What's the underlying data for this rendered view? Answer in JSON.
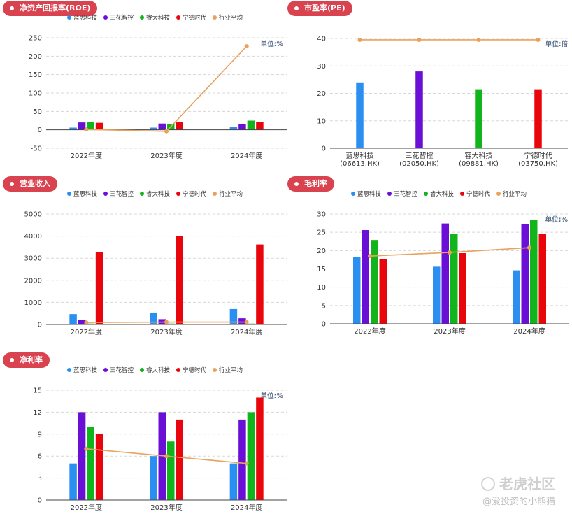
{
  "colors": {
    "s0": "#2b8ff2",
    "s1": "#6a0fd6",
    "s2": "#11b51b",
    "s3": "#e8060c",
    "avg": "#e8a25e"
  },
  "charts": [
    {
      "id": "roe",
      "title": "净资产回报率(ROE)",
      "unit": "单位:%",
      "chart_data": {
        "type": "bar",
        "categories": [
          "2022年度",
          "2023年度",
          "2024年度"
        ],
        "ylim": [
          -50,
          250
        ],
        "yticks": [
          "250",
          "200",
          "150",
          "100",
          "50",
          "0",
          "-50"
        ],
        "series": [
          {
            "name": "蓝思科技",
            "values": [
              6,
              6,
              8
            ]
          },
          {
            "name": "三花智控",
            "values": [
              20,
              17,
              16
            ]
          },
          {
            "name": "睿大科技",
            "values": [
              21,
              16,
              25
            ]
          },
          {
            "name": "宁德时代",
            "values": [
              19,
              22,
              21
            ]
          }
        ],
        "line": {
          "name": "行业平均",
          "values": [
            1,
            -4,
            227
          ]
        }
      }
    },
    {
      "id": "pe",
      "title": "市盈率(PE)",
      "unit": "单位:倍",
      "chart_data": {
        "type": "bar",
        "categories": [
          "蓝思科技",
          "三花智控",
          "容大科技",
          "宁德时代"
        ],
        "category_codes": [
          "(06613.HK)",
          "(02050.HK)",
          "(09881.HK)",
          "(03750.HK)"
        ],
        "ylim": [
          0,
          40
        ],
        "yticks": [
          "40",
          "30",
          "20",
          "10",
          "0"
        ],
        "values": [
          24,
          28,
          21.5,
          21.5
        ],
        "line": {
          "name": "行业平均",
          "values": [
            39.5,
            39.5,
            39.5,
            39.5
          ]
        }
      }
    },
    {
      "id": "revenue",
      "title": "营业收入",
      "unit": "",
      "chart_data": {
        "type": "bar",
        "categories": [
          "2022年度",
          "2023年度",
          "2024年度"
        ],
        "ylim": [
          0,
          5000
        ],
        "yticks": [
          "5000",
          "4000",
          "3000",
          "2000",
          "1000",
          "0"
        ],
        "series": [
          {
            "name": "蓝思科技",
            "values": [
              470,
              540,
              700
            ]
          },
          {
            "name": "三花智控",
            "values": [
              210,
              240,
              280
            ]
          },
          {
            "name": "睿大科技",
            "values": [
              40,
              40,
              40
            ]
          },
          {
            "name": "宁德时代",
            "values": [
              3280,
              4010,
              3620
            ]
          }
        ],
        "line": {
          "name": "行业平均",
          "values": [
            90,
            110,
            110
          ]
        }
      }
    },
    {
      "id": "gross",
      "title": "毛利率",
      "unit": "单位:%",
      "chart_data": {
        "type": "bar",
        "categories": [
          "2022年度",
          "2023年度",
          "2024年度"
        ],
        "ylim": [
          0,
          30
        ],
        "yticks": [
          "30",
          "25",
          "20",
          "15",
          "10",
          "5",
          "0"
        ],
        "series": [
          {
            "name": "蓝思科技",
            "values": [
              18.3,
              15.6,
              14.6
            ]
          },
          {
            "name": "三花智控",
            "values": [
              25.6,
              27.4,
              27.3
            ]
          },
          {
            "name": "睿大科技",
            "values": [
              22.9,
              24.5,
              28.4
            ]
          },
          {
            "name": "宁德时代",
            "values": [
              17.7,
              19.3,
              24.5
            ]
          }
        ],
        "line": {
          "name": "行业平均",
          "values": [
            18.5,
            19.5,
            20.8
          ]
        }
      }
    },
    {
      "id": "net",
      "title": "净利率",
      "unit": "单位:%",
      "chart_data": {
        "type": "bar",
        "categories": [
          "2022年度",
          "2023年度",
          "2024年度"
        ],
        "ylim": [
          0,
          15
        ],
        "yticks": [
          "15",
          "12",
          "9",
          "6",
          "3",
          "0"
        ],
        "series": [
          {
            "name": "蓝思科技",
            "values": [
              5,
              6,
              5
            ]
          },
          {
            "name": "三花智控",
            "values": [
              12,
              12,
              11
            ]
          },
          {
            "name": "睿大科技",
            "values": [
              10,
              8,
              12
            ]
          },
          {
            "name": "宁德时代",
            "values": [
              9,
              11,
              14
            ]
          }
        ],
        "line": {
          "name": "行业平均",
          "values": [
            7,
            6,
            5
          ]
        }
      }
    }
  ],
  "watermark": {
    "brand": "老虎社区",
    "handle": "@爱投资的小熊猫"
  }
}
